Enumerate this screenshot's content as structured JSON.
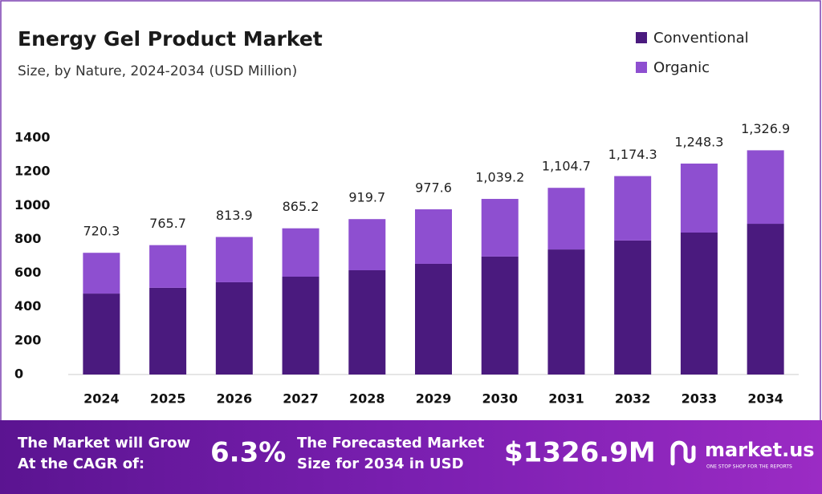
{
  "chart_data": {
    "type": "stacked-bar",
    "title": "Energy Gel Product Market",
    "subtitle": "Size, by Nature, 2024-2034 (USD Million)",
    "categories": [
      "2024",
      "2025",
      "2026",
      "2027",
      "2028",
      "2029",
      "2030",
      "2031",
      "2032",
      "2033",
      "2034"
    ],
    "series": [
      {
        "name": "Conventional",
        "color": "#4a1a7e",
        "values": [
          479,
          513,
          546,
          579,
          617,
          655,
          698,
          740,
          793,
          840,
          892
        ]
      },
      {
        "name": "Organic",
        "color": "#8e4fd0",
        "values": [
          241.3,
          252.7,
          267.9,
          286.2,
          302.7,
          322.6,
          341.2,
          364.7,
          381.3,
          408.3,
          434.9
        ]
      }
    ],
    "totals": {
      "values": [
        720.3,
        765.7,
        813.9,
        865.2,
        919.7,
        977.6,
        1039.2,
        1104.7,
        1174.3,
        1248.3,
        1326.9
      ],
      "value_labels": [
        "720.3",
        "765.7",
        "813.9",
        "865.2",
        "919.7",
        "977.6",
        "1,039.2",
        "1,104.7",
        "1,174.3",
        "1,248.3",
        "1,326.9"
      ]
    },
    "ylim": [
      0,
      1400
    ],
    "yticks": [
      0,
      200,
      400,
      600,
      800,
      1000,
      1200,
      1400
    ],
    "grid": false,
    "legend": "top-right"
  },
  "footer": {
    "cagr_text": [
      "The Market will Grow",
      "At the CAGR of:"
    ],
    "cagr": "6.3%",
    "forecast_text": [
      "The Forecasted Market",
      "Size for 2034 in USD"
    ],
    "forecast": "$1326.9M",
    "brand": "market.us",
    "tagline": "ONE STOP SHOP FOR THE REPORTS"
  }
}
